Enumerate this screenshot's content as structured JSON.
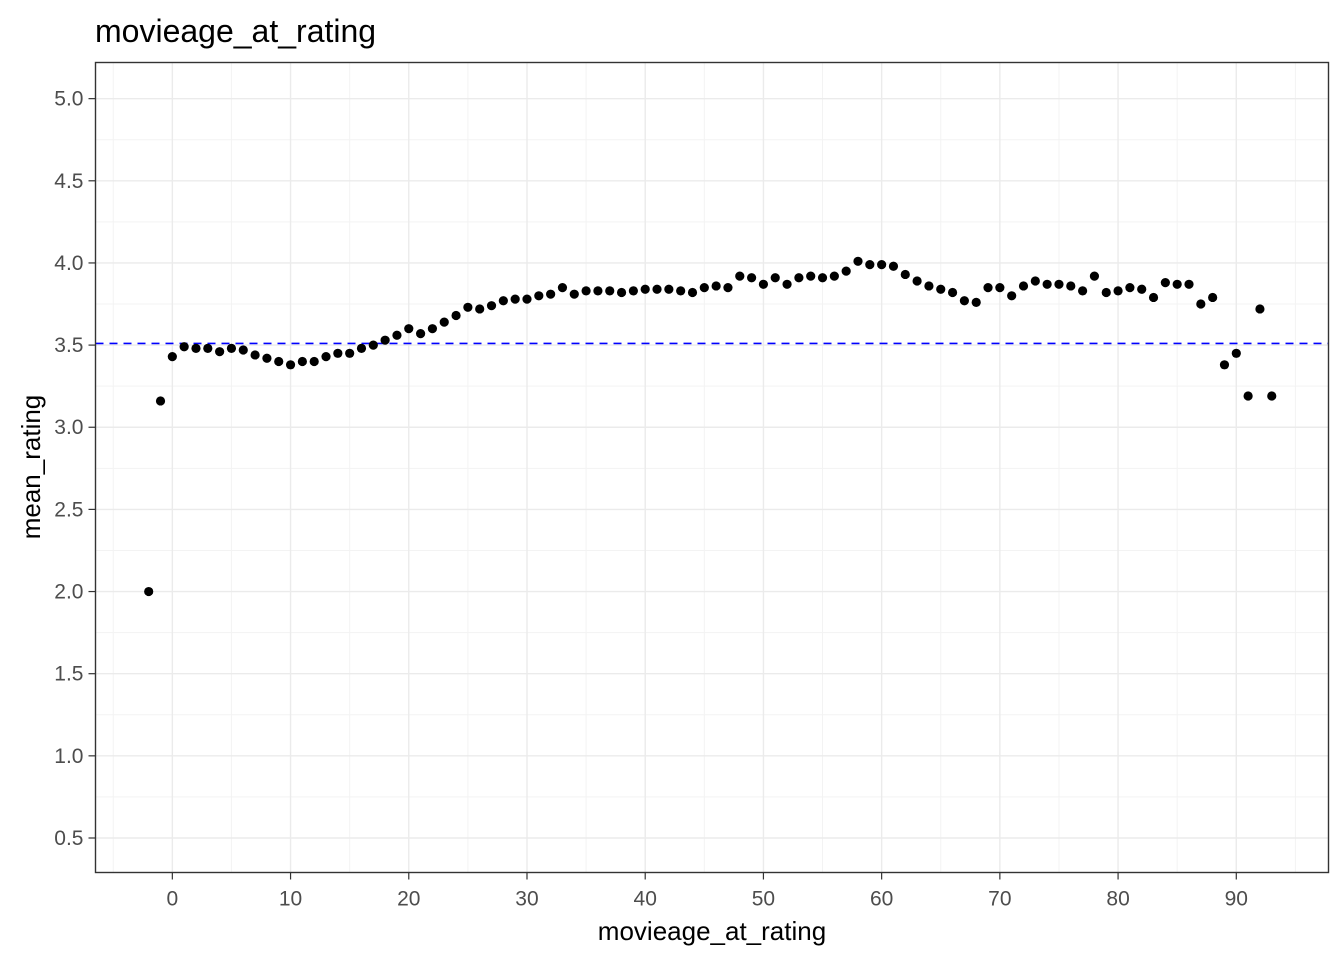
{
  "chart_data": {
    "type": "scatter",
    "title": "movieage_at_rating",
    "xlabel": "movieage_at_rating",
    "ylabel": "mean_rating",
    "xlim": [
      -6.5,
      97.8
    ],
    "ylim": [
      0.29,
      5.22
    ],
    "x_ticks": [
      0,
      10,
      20,
      30,
      40,
      50,
      60,
      70,
      80,
      90
    ],
    "y_ticks": [
      0.5,
      1.0,
      1.5,
      2.0,
      2.5,
      3.0,
      3.5,
      4.0,
      4.5,
      5.0
    ],
    "x_tick_labels": [
      "0",
      "10",
      "20",
      "30",
      "40",
      "50",
      "60",
      "70",
      "80",
      "90"
    ],
    "y_tick_labels": [
      "0.5",
      "1.0",
      "1.5",
      "2.0",
      "2.5",
      "3.0",
      "3.5",
      "4.0",
      "4.5",
      "5.0"
    ],
    "grid": true,
    "reference_line": {
      "orientation": "horizontal",
      "y": 3.51,
      "color": "#0000ff",
      "style": "dashed"
    },
    "point_color": "#000000",
    "points": [
      [
        -2,
        2.0
      ],
      [
        -1,
        3.16
      ],
      [
        0,
        3.43
      ],
      [
        1,
        3.49
      ],
      [
        2,
        3.48
      ],
      [
        3,
        3.48
      ],
      [
        4,
        3.46
      ],
      [
        5,
        3.48
      ],
      [
        6,
        3.47
      ],
      [
        7,
        3.44
      ],
      [
        8,
        3.42
      ],
      [
        9,
        3.4
      ],
      [
        10,
        3.38
      ],
      [
        11,
        3.4
      ],
      [
        12,
        3.4
      ],
      [
        13,
        3.43
      ],
      [
        14,
        3.45
      ],
      [
        15,
        3.45
      ],
      [
        16,
        3.48
      ],
      [
        17,
        3.5
      ],
      [
        18,
        3.53
      ],
      [
        19,
        3.56
      ],
      [
        20,
        3.6
      ],
      [
        21,
        3.57
      ],
      [
        22,
        3.6
      ],
      [
        23,
        3.64
      ],
      [
        24,
        3.68
      ],
      [
        25,
        3.73
      ],
      [
        26,
        3.72
      ],
      [
        27,
        3.74
      ],
      [
        28,
        3.77
      ],
      [
        29,
        3.78
      ],
      [
        30,
        3.78
      ],
      [
        31,
        3.8
      ],
      [
        32,
        3.81
      ],
      [
        33,
        3.85
      ],
      [
        34,
        3.81
      ],
      [
        35,
        3.83
      ],
      [
        36,
        3.83
      ],
      [
        37,
        3.83
      ],
      [
        38,
        3.82
      ],
      [
        39,
        3.83
      ],
      [
        40,
        3.84
      ],
      [
        41,
        3.84
      ],
      [
        42,
        3.84
      ],
      [
        43,
        3.83
      ],
      [
        44,
        3.82
      ],
      [
        45,
        3.85
      ],
      [
        46,
        3.86
      ],
      [
        47,
        3.85
      ],
      [
        48,
        3.92
      ],
      [
        49,
        3.91
      ],
      [
        50,
        3.87
      ],
      [
        51,
        3.91
      ],
      [
        52,
        3.87
      ],
      [
        53,
        3.91
      ],
      [
        54,
        3.92
      ],
      [
        55,
        3.91
      ],
      [
        56,
        3.92
      ],
      [
        57,
        3.95
      ],
      [
        58,
        4.01
      ],
      [
        59,
        3.99
      ],
      [
        60,
        3.99
      ],
      [
        61,
        3.98
      ],
      [
        62,
        3.93
      ],
      [
        63,
        3.89
      ],
      [
        64,
        3.86
      ],
      [
        65,
        3.84
      ],
      [
        66,
        3.82
      ],
      [
        67,
        3.77
      ],
      [
        68,
        3.76
      ],
      [
        69,
        3.85
      ],
      [
        70,
        3.85
      ],
      [
        71,
        3.8
      ],
      [
        72,
        3.86
      ],
      [
        73,
        3.89
      ],
      [
        74,
        3.87
      ],
      [
        75,
        3.87
      ],
      [
        76,
        3.86
      ],
      [
        77,
        3.83
      ],
      [
        78,
        3.92
      ],
      [
        79,
        3.82
      ],
      [
        80,
        3.83
      ],
      [
        81,
        3.85
      ],
      [
        82,
        3.84
      ],
      [
        83,
        3.79
      ],
      [
        84,
        3.88
      ],
      [
        85,
        3.87
      ],
      [
        86,
        3.87
      ],
      [
        87,
        3.75
      ],
      [
        88,
        3.79
      ],
      [
        89,
        3.38
      ],
      [
        90,
        3.45
      ],
      [
        91,
        3.19
      ],
      [
        92,
        3.72
      ],
      [
        93,
        3.19
      ]
    ]
  }
}
